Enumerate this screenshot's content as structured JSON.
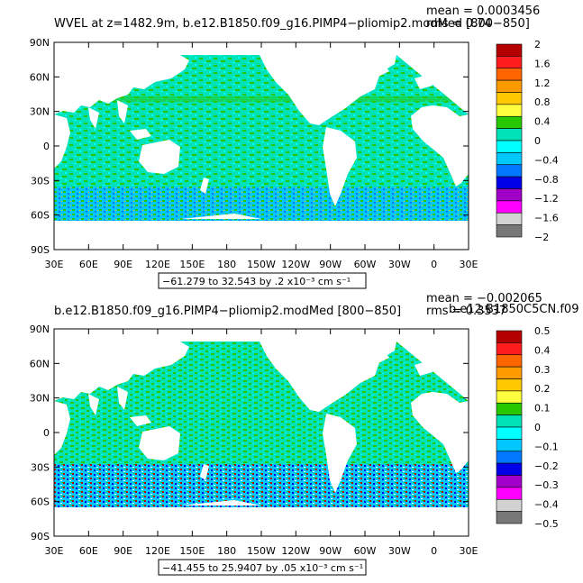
{
  "colors": {
    "ocean": "#00e2b8",
    "land": "#ffffff",
    "frame": "#000000"
  },
  "lon_labels": [
    "30E",
    "60E",
    "90E",
    "120E",
    "150E",
    "180",
    "150W",
    "120W",
    "90W",
    "60W",
    "30W",
    "0",
    "30E"
  ],
  "lat_labels": [
    "90N",
    "60N",
    "30N",
    "0",
    "30S",
    "60S",
    "90S"
  ],
  "panels": [
    {
      "title": "WVEL at z=1482.9m, b.e12.B1850.f09_g16.PIMP4−pliomip2.modMed [800−850]",
      "mean": "mean = 0.0003456",
      "rms": "rms = 0.74",
      "range_label": "−61.279 to 32.543 by .2 x10⁻³ cm s⁻¹",
      "levels": [
        "2",
        "1.6",
        "1.2",
        "0.8",
        "0.4",
        "0",
        "−0.4",
        "−0.8",
        "−1.2",
        "−1.6",
        "−2"
      ],
      "palette": [
        "#b40000",
        "#ff1e1e",
        "#ff6600",
        "#ff9a00",
        "#ffc800",
        "#ffff40",
        "#28c800",
        "#00e2b8",
        "#00ffff",
        "#00c8ff",
        "#0078ff",
        "#0000e6",
        "#a000c8",
        "#ff00ff",
        "#d2d2d2",
        "#787878"
      ]
    },
    {
      "title": "b.e12.B1850.f09_g16.PIMP4−pliomip2.modMed [800−850]",
      "mean": "mean = −0.002065",
      "rms": "rms = 0.3537",
      "overlay_text": "b.e12.B1850C5CN.f09",
      "range_label": "−41.455 to 25.9407 by .05 x10⁻³ cm s⁻¹",
      "levels": [
        "0.5",
        "0.4",
        "0.3",
        "0.2",
        "0.1",
        "0",
        "−0.1",
        "−0.2",
        "−0.3",
        "−0.4",
        "−0.5"
      ],
      "palette": [
        "#b40000",
        "#ff1e1e",
        "#ff6600",
        "#ff9a00",
        "#ffc800",
        "#ffff40",
        "#28c800",
        "#00e2b8",
        "#00ffff",
        "#00c8ff",
        "#0078ff",
        "#0000e6",
        "#a000c8",
        "#ff00ff",
        "#d2d2d2",
        "#787878"
      ]
    }
  ]
}
